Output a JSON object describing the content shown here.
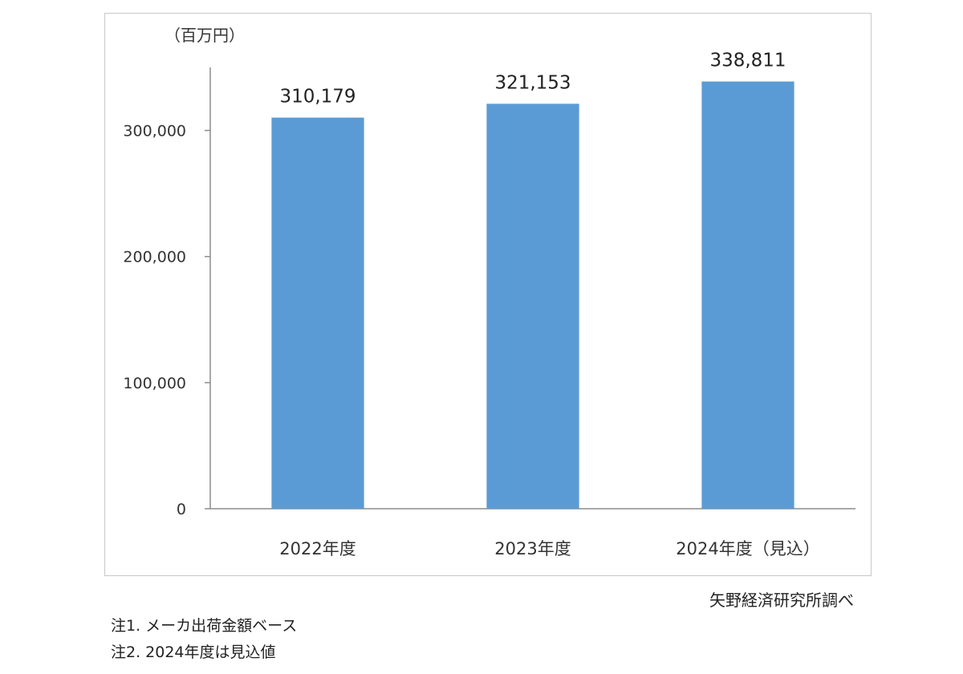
{
  "chart_data": {
    "type": "bar",
    "unit_label": "（百万円）",
    "categories": [
      "2022年度",
      "2023年度",
      "2024年度（見込）"
    ],
    "values": [
      310179,
      321153,
      338811
    ],
    "value_labels": [
      "310,179",
      "321,153",
      "338,811"
    ],
    "ylim": [
      0,
      350000
    ],
    "yticks": [
      0,
      100000,
      200000,
      300000
    ],
    "ytick_labels": [
      "0",
      "100,000",
      "200,000",
      "300,000"
    ],
    "grid": false,
    "bar_color": "#5b9bd5"
  },
  "source": "矢野経済研究所調べ",
  "notes": [
    "注1.  メーカ出荷金額ベース",
    "注2.  2024年度は見込値"
  ]
}
